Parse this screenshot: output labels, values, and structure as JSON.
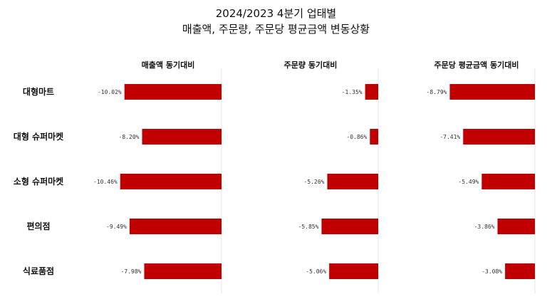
{
  "title_line1": "2024/2023 4분기 업태별",
  "title_line2": "매출액, 주문량, 주문당 평균금액 변동상황",
  "colors": {
    "bar": "#c00000",
    "axis": "#e6e6e6"
  },
  "chart_data": {
    "type": "bar",
    "orientation": "horizontal",
    "title": "2024/2023 4분기 업태별 매출액, 주문량, 주문당 평균금액 변동상황",
    "categories": [
      "대형마트",
      "대형 슈퍼마켓",
      "소형 슈퍼마켓",
      "편의점",
      "식료품점"
    ],
    "panels": [
      {
        "name": "매출액 동기대비",
        "values": [
          -10.02,
          -8.2,
          -10.46,
          -9.49,
          -7.98
        ],
        "labels": [
          "-10.02%",
          "-8.20%",
          "-10.46%",
          "-9.49%",
          "-7.98%"
        ]
      },
      {
        "name": "주문량 동기대비",
        "values": [
          -1.35,
          -0.86,
          -5.26,
          -5.85,
          -5.06
        ],
        "labels": [
          "-1.35%",
          "-0.86%",
          "-5.26%",
          "-5.85%",
          "-5.06%"
        ]
      },
      {
        "name": "주문당 평균금액 동기대비",
        "values": [
          -8.79,
          -7.41,
          -5.49,
          -3.86,
          -3.08
        ],
        "labels": [
          "-8.79%",
          "-7.41%",
          "-5.49%",
          "-3.86%",
          "-3.08%"
        ]
      }
    ],
    "legend": "none",
    "grid": false
  }
}
